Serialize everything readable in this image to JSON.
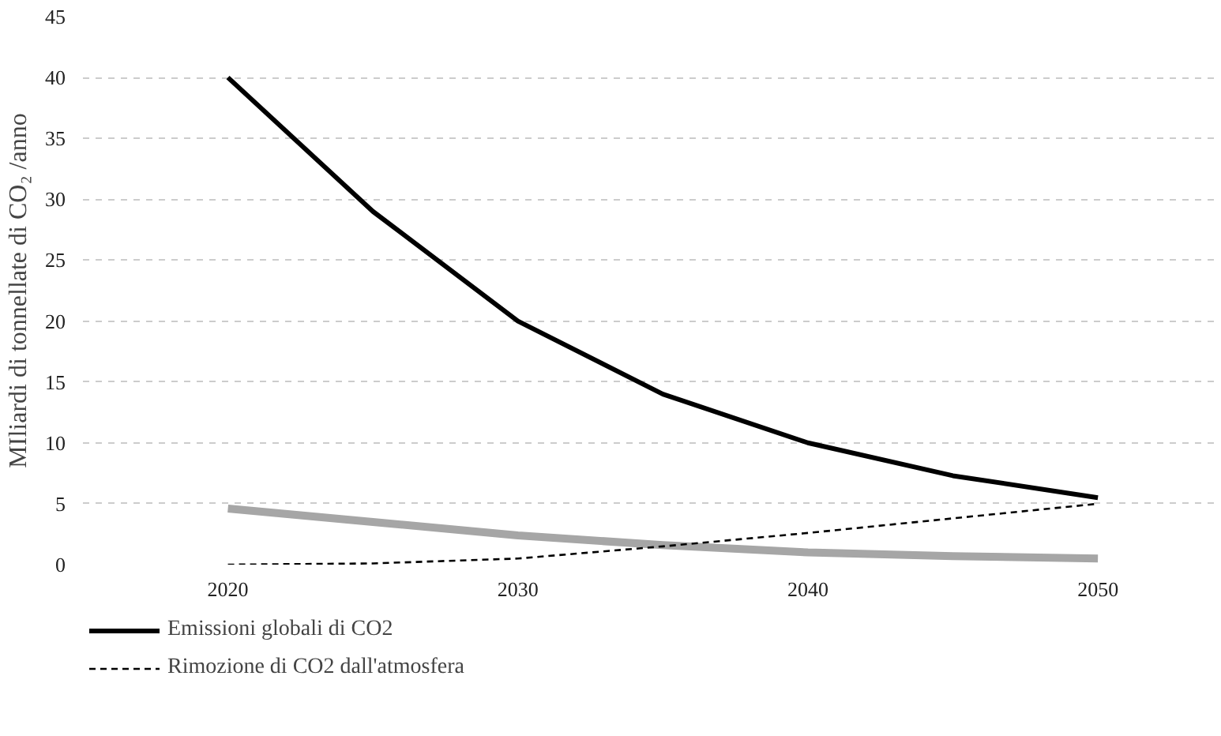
{
  "chart_data": {
    "type": "line",
    "ylabel": "MIliardi di tonnellate di CO₂ /anno",
    "x": [
      2020,
      2025,
      2030,
      2035,
      2040,
      2045,
      2050
    ],
    "series": [
      {
        "name": "Emissioni globali di CO2",
        "color": "#000000",
        "line_style": "solid",
        "values": [
          40,
          29,
          20,
          14,
          10,
          7.3,
          5.5
        ]
      },
      {
        "color": "#a6a6a6",
        "line_style": "solid",
        "values": [
          4.6,
          3.5,
          2.4,
          1.6,
          1.0,
          0.7,
          0.5
        ]
      },
      {
        "name": "Rimozione di CO2 dall'atmosfera",
        "color": "#000000",
        "line_style": "dashed",
        "values": [
          0,
          0.1,
          0.5,
          1.5,
          2.6,
          3.8,
          5
        ]
      }
    ],
    "xlim": [
      2015,
      2054
    ],
    "xticks": [
      2020,
      2030,
      2040,
      2050
    ],
    "ylim": [
      0,
      45
    ],
    "yticks": [
      0,
      5,
      10,
      15,
      20,
      25,
      30,
      35,
      40,
      45
    ],
    "grid": "y",
    "legend": "bottom left",
    "marker": "none"
  }
}
